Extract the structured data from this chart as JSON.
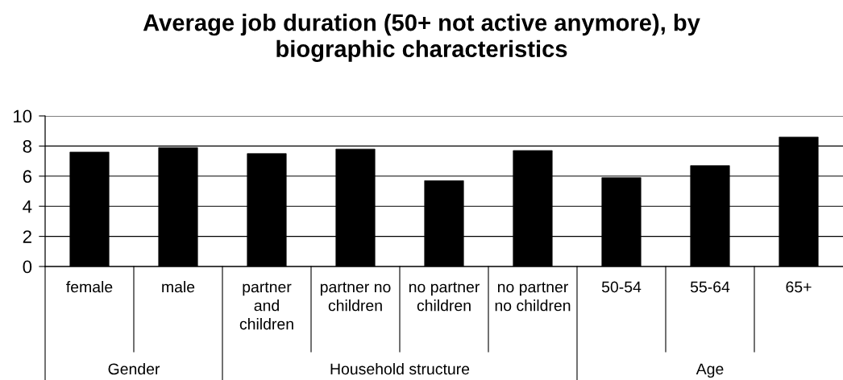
{
  "chart_data": {
    "type": "bar",
    "title": "Average job duration (50+ not active anymore), by\nbiographic characteristics",
    "categories": [
      "female",
      "male",
      "partner\nand\nchildren",
      "partner no\nchildren",
      "no partner\nchildren",
      "no partner\nno children",
      "50-54",
      "55-64",
      "65+"
    ],
    "values": [
      7.6,
      7.9,
      7.5,
      7.8,
      5.7,
      7.7,
      5.9,
      6.7,
      8.6
    ],
    "color": "#000000",
    "ylim": [
      0,
      10
    ],
    "yticks": [
      0,
      2,
      4,
      6,
      8,
      10
    ],
    "grid": "y",
    "annotations": [
      "Gender",
      "Household structure",
      "Age"
    ]
  }
}
